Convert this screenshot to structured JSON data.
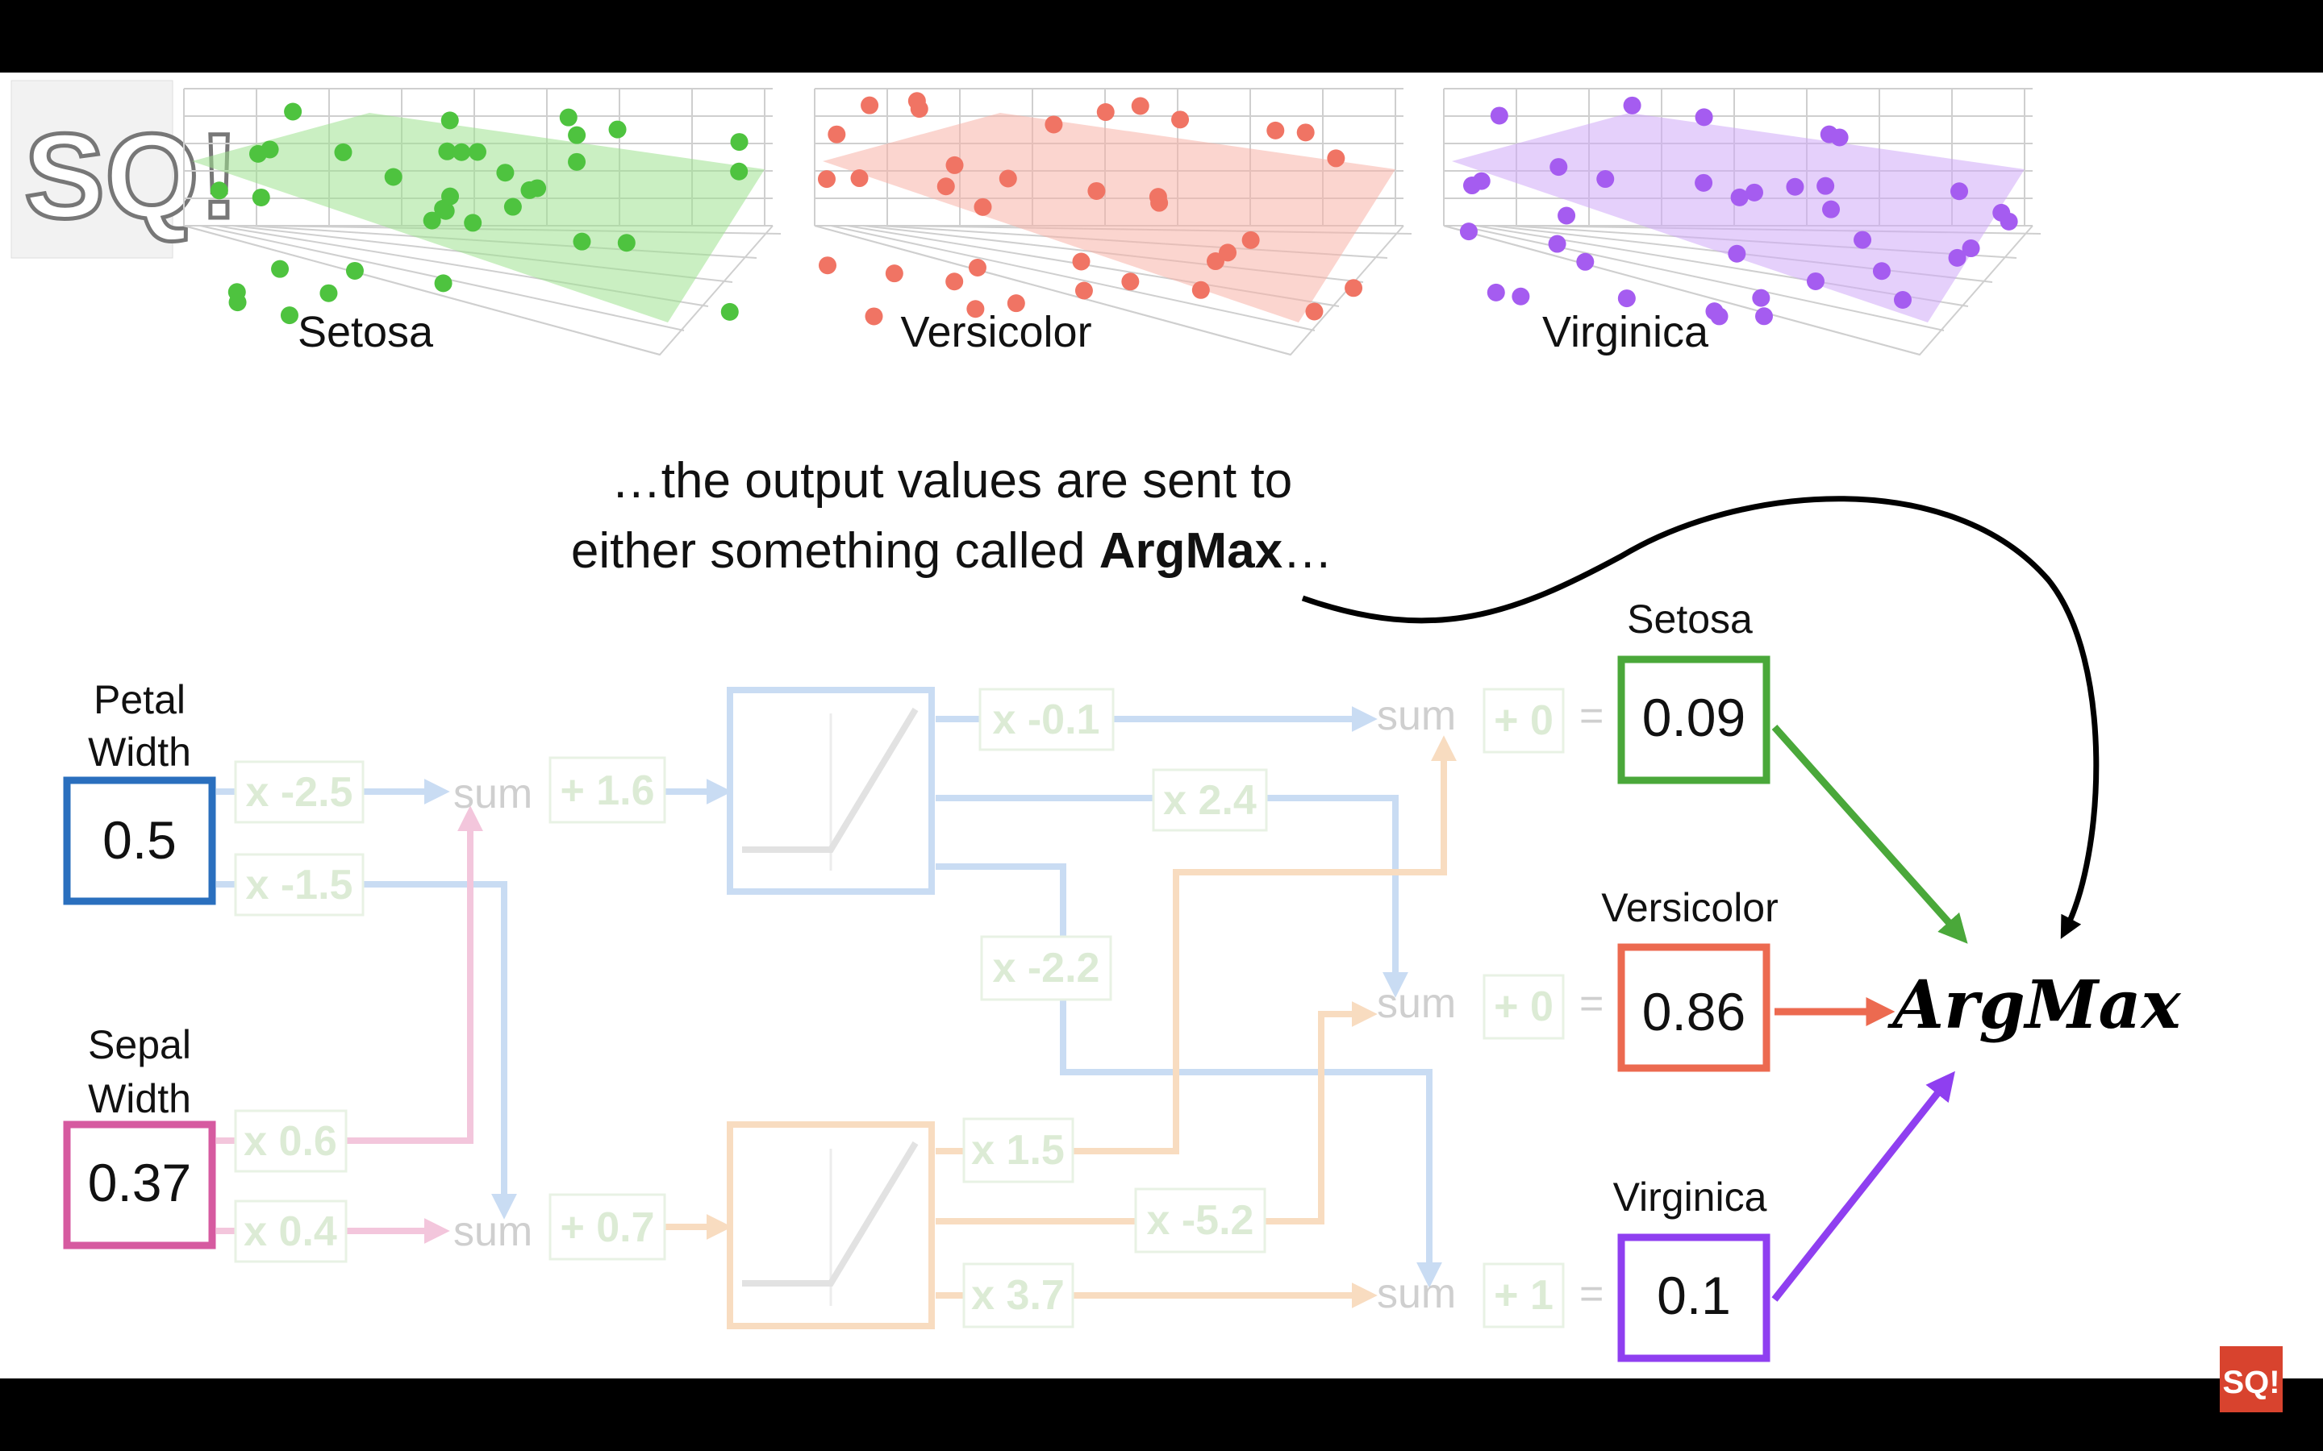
{
  "plots": [
    {
      "label": "Setosa",
      "color": "#4ec33f",
      "fill": "#9ee28f"
    },
    {
      "label": "Versicolor",
      "color": "#f07464",
      "fill": "#f7b3a8"
    },
    {
      "label": "Virginica",
      "color": "#a55cf0",
      "fill": "#cfa9f7"
    }
  ],
  "caption": {
    "line1": "…the output values are sent to",
    "line2_prefix": "either something called ",
    "line2_bold": "ArgMax",
    "line2_suffix": "…"
  },
  "inputs": {
    "petal": {
      "label_line1": "Petal",
      "label_line2": "Width",
      "value": "0.5",
      "color": "#2a6fbe"
    },
    "sepal": {
      "label_line1": "Sepal",
      "label_line2": "Width",
      "value": "0.37",
      "color": "#d65aa0"
    }
  },
  "weights": {
    "w1": "x -2.5",
    "w2": "x -1.5",
    "w3": "x 0.6",
    "w4": "x 0.4",
    "b1": "+ 1.6",
    "b2": "+ 0.7",
    "w5": "x -0.1",
    "w6": "x 2.4",
    "w7": "x -2.2",
    "w8": "x 1.5",
    "w9": "x -5.2",
    "w10": "x 3.7",
    "ob1": "+ 0",
    "ob2": "+ 0",
    "ob3": "+ 1"
  },
  "sum_label": "sum",
  "equals": "=",
  "outputs": [
    {
      "label": "Setosa",
      "value": "0.09",
      "color": "#4aa83a"
    },
    {
      "label": "Versicolor",
      "value": "0.86",
      "color": "#ec6a50"
    },
    {
      "label": "Virginica",
      "value": "0.1",
      "color": "#8f3ff0"
    }
  ],
  "argmax_label": "ArgMax",
  "logo_text": "SQ!"
}
